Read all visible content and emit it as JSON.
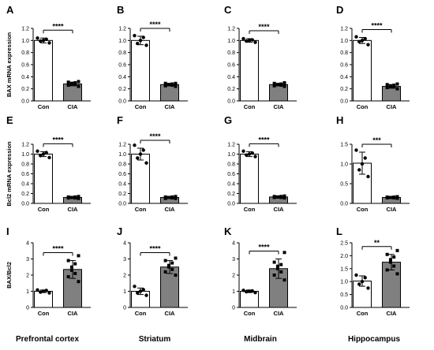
{
  "chart_data": {
    "type": "bar",
    "groups": [
      "Con",
      "CIA"
    ],
    "regions": [
      "Prefrontal cortex",
      "Striatum",
      "Midbrain",
      "Hippocampus"
    ],
    "rows": [
      {
        "ylabel": "BAX mRNA expression",
        "panels": [
          {
            "letter": "A",
            "ylim": [
              0,
              1.2
            ],
            "ticks": [
              "0.0",
              "0.2",
              "0.4",
              "0.6",
              "0.8",
              "1.0",
              "1.2"
            ],
            "con": {
              "mean": 1.0,
              "sd": 0.04,
              "points": [
                0.96,
                0.99,
                1.0,
                1.02,
                1.04
              ]
            },
            "cia": {
              "mean": 0.28,
              "sd": 0.03,
              "points": [
                0.24,
                0.26,
                0.27,
                0.28,
                0.29,
                0.3,
                0.31,
                0.32
              ]
            },
            "sig": "****"
          },
          {
            "letter": "B",
            "ylim": [
              0,
              1.2
            ],
            "ticks": [
              "0.0",
              "0.2",
              "0.4",
              "0.6",
              "0.8",
              "1.0",
              "1.2"
            ],
            "con": {
              "mean": 1.0,
              "sd": 0.07,
              "points": [
                0.92,
                0.95,
                1.0,
                1.05,
                1.08
              ]
            },
            "cia": {
              "mean": 0.27,
              "sd": 0.02,
              "points": [
                0.24,
                0.25,
                0.26,
                0.27,
                0.27,
                0.28,
                0.29,
                0.29
              ]
            },
            "sig": "****"
          },
          {
            "letter": "C",
            "ylim": [
              0,
              1.2
            ],
            "ticks": [
              "0.0",
              "0.2",
              "0.4",
              "0.6",
              "0.8",
              "1.0",
              "1.2"
            ],
            "con": {
              "mean": 1.0,
              "sd": 0.03,
              "points": [
                0.97,
                0.99,
                1.0,
                1.01,
                1.03
              ]
            },
            "cia": {
              "mean": 0.27,
              "sd": 0.02,
              "points": [
                0.24,
                0.25,
                0.26,
                0.27,
                0.27,
                0.28,
                0.29,
                0.3
              ]
            },
            "sig": "****"
          },
          {
            "letter": "D",
            "ylim": [
              0,
              1.2
            ],
            "ticks": [
              "0.0",
              "0.2",
              "0.4",
              "0.6",
              "0.8",
              "1.0",
              "1.2"
            ],
            "con": {
              "mean": 1.0,
              "sd": 0.05,
              "points": [
                0.93,
                0.98,
                1.0,
                1.03,
                1.06
              ]
            },
            "cia": {
              "mean": 0.24,
              "sd": 0.03,
              "points": [
                0.2,
                0.22,
                0.23,
                0.24,
                0.25,
                0.26,
                0.27,
                0.28
              ]
            },
            "sig": "****"
          }
        ]
      },
      {
        "ylabel": "Bcl2 mRNA expression",
        "panels": [
          {
            "letter": "E",
            "ylim": [
              0,
              1.2
            ],
            "ticks": [
              "0.0",
              "0.2",
              "0.4",
              "0.6",
              "0.8",
              "1.0",
              "1.2"
            ],
            "con": {
              "mean": 1.0,
              "sd": 0.05,
              "points": [
                0.93,
                0.97,
                1.0,
                1.03,
                1.06
              ]
            },
            "cia": {
              "mean": 0.12,
              "sd": 0.02,
              "points": [
                0.1,
                0.11,
                0.11,
                0.12,
                0.12,
                0.13,
                0.13,
                0.14
              ]
            },
            "sig": "****"
          },
          {
            "letter": "F",
            "ylim": [
              0,
              1.2
            ],
            "ticks": [
              "0.0",
              "0.2",
              "0.4",
              "0.6",
              "0.8",
              "1.0",
              "1.2"
            ],
            "con": {
              "mean": 1.0,
              "sd": 0.12,
              "points": [
                0.82,
                0.92,
                1.0,
                1.08,
                1.18
              ]
            },
            "cia": {
              "mean": 0.12,
              "sd": 0.02,
              "points": [
                0.1,
                0.1,
                0.11,
                0.12,
                0.12,
                0.13,
                0.13,
                0.14
              ]
            },
            "sig": "****"
          },
          {
            "letter": "G",
            "ylim": [
              0,
              1.2
            ],
            "ticks": [
              "0.0",
              "0.2",
              "0.4",
              "0.6",
              "0.8",
              "1.0",
              "1.2"
            ],
            "con": {
              "mean": 1.0,
              "sd": 0.05,
              "points": [
                0.95,
                0.98,
                1.0,
                1.02,
                1.06
              ]
            },
            "cia": {
              "mean": 0.13,
              "sd": 0.02,
              "points": [
                0.11,
                0.12,
                0.12,
                0.13,
                0.13,
                0.14,
                0.14,
                0.15
              ]
            },
            "sig": "****"
          },
          {
            "letter": "H",
            "ylim": [
              0,
              1.5
            ],
            "ticks": [
              "0.0",
              "0.5",
              "1.0",
              "1.5"
            ],
            "con": {
              "mean": 1.02,
              "sd": 0.28,
              "points": [
                0.68,
                0.85,
                1.0,
                1.15,
                1.35
              ]
            },
            "cia": {
              "mean": 0.15,
              "sd": 0.02,
              "points": [
                0.13,
                0.14,
                0.14,
                0.15,
                0.15,
                0.16,
                0.16,
                0.17
              ]
            },
            "sig": "***"
          }
        ]
      },
      {
        "ylabel": "BAX/Bcl2",
        "panels": [
          {
            "letter": "I",
            "ylim": [
              0,
              4
            ],
            "ticks": [
              "0",
              "1",
              "2",
              "3",
              "4"
            ],
            "con": {
              "mean": 1.0,
              "sd": 0.08,
              "points": [
                0.9,
                0.95,
                1.0,
                1.05,
                1.08
              ]
            },
            "cia": {
              "mean": 2.35,
              "sd": 0.55,
              "points": [
                1.6,
                1.9,
                2.1,
                2.3,
                2.5,
                2.7,
                2.9,
                3.2
              ]
            },
            "sig": "****"
          },
          {
            "letter": "J",
            "ylim": [
              0,
              4
            ],
            "ticks": [
              "0",
              "1",
              "2",
              "3",
              "4"
            ],
            "con": {
              "mean": 1.0,
              "sd": 0.2,
              "points": [
                0.75,
                0.9,
                1.0,
                1.1,
                1.3
              ]
            },
            "cia": {
              "mean": 2.5,
              "sd": 0.4,
              "points": [
                2.0,
                2.2,
                2.35,
                2.5,
                2.6,
                2.75,
                2.9,
                3.05
              ]
            },
            "sig": "****"
          },
          {
            "letter": "K",
            "ylim": [
              0,
              4
            ],
            "ticks": [
              "0",
              "1",
              "2",
              "3",
              "4"
            ],
            "con": {
              "mean": 1.0,
              "sd": 0.08,
              "points": [
                0.92,
                0.97,
                1.0,
                1.02,
                1.06
              ]
            },
            "cia": {
              "mean": 2.4,
              "sd": 0.6,
              "points": [
                1.7,
                2.0,
                2.2,
                2.4,
                2.55,
                2.65,
                2.8,
                3.4
              ]
            },
            "sig": "****"
          },
          {
            "letter": "L",
            "ylim": [
              0,
              2.5
            ],
            "ticks": [
              "0.0",
              "0.5",
              "1.0",
              "1.5",
              "2.0",
              "2.5"
            ],
            "con": {
              "mean": 1.02,
              "sd": 0.2,
              "points": [
                0.75,
                0.9,
                1.0,
                1.15,
                1.25
              ]
            },
            "cia": {
              "mean": 1.75,
              "sd": 0.3,
              "points": [
                1.3,
                1.45,
                1.6,
                1.75,
                1.85,
                1.95,
                2.05,
                2.2
              ]
            },
            "sig": "**"
          }
        ]
      }
    ],
    "colors": {
      "con": "#ffffff",
      "cia": "#808080",
      "axis": "#000000"
    }
  }
}
